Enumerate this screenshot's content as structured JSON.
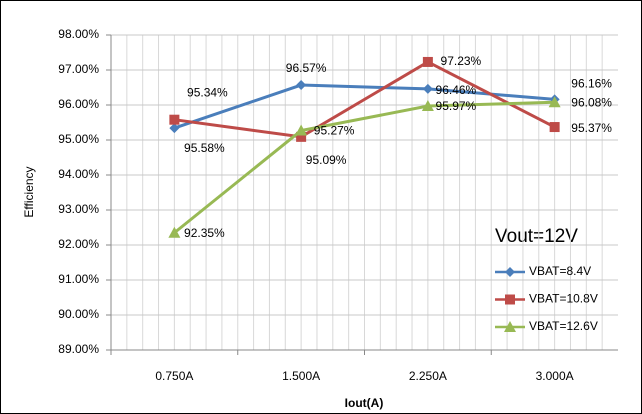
{
  "chart_data": {
    "type": "line",
    "annotation": "Vout=12V",
    "x_label": "Iout(A)",
    "y_label": "Efficiency",
    "categories": [
      "0.750A",
      "1.500A",
      "2.250A",
      "3.000A"
    ],
    "series": [
      {
        "name": "VBAT=8.4V",
        "color": "#4a7ebb",
        "marker": "diamond",
        "values": [
          95.34,
          96.57,
          96.46,
          96.16
        ],
        "value_labels": [
          "95.34%",
          "96.57%",
          "96.46%",
          "96.16%"
        ]
      },
      {
        "name": "VBAT=10.8V",
        "color": "#be4b48",
        "marker": "square",
        "values": [
          95.58,
          95.09,
          97.23,
          95.37
        ],
        "value_labels": [
          "95.58%",
          "95.09%",
          "97.23%",
          "95.37%"
        ]
      },
      {
        "name": "VBAT=12.6V",
        "color": "#98b954",
        "marker": "triangle",
        "values": [
          92.35,
          95.27,
          95.97,
          96.08
        ],
        "value_labels": [
          "92.35%",
          "95.27%",
          "95.97%",
          "96.08%"
        ]
      }
    ],
    "ylim": [
      89,
      98
    ],
    "yticks": [
      {
        "value": 89,
        "label": "89.00%"
      },
      {
        "value": 90,
        "label": "90.00%"
      },
      {
        "value": 91,
        "label": "91.00%"
      },
      {
        "value": 92,
        "label": "92.00%"
      },
      {
        "value": 93,
        "label": "93.00%"
      },
      {
        "value": 94,
        "label": "94.00%"
      },
      {
        "value": 95,
        "label": "95.00%"
      },
      {
        "value": 96,
        "label": "96.00%"
      },
      {
        "value": 97,
        "label": "97.00%"
      },
      {
        "value": 98,
        "label": "98.00%"
      }
    ],
    "grid": true,
    "legend": "right"
  }
}
